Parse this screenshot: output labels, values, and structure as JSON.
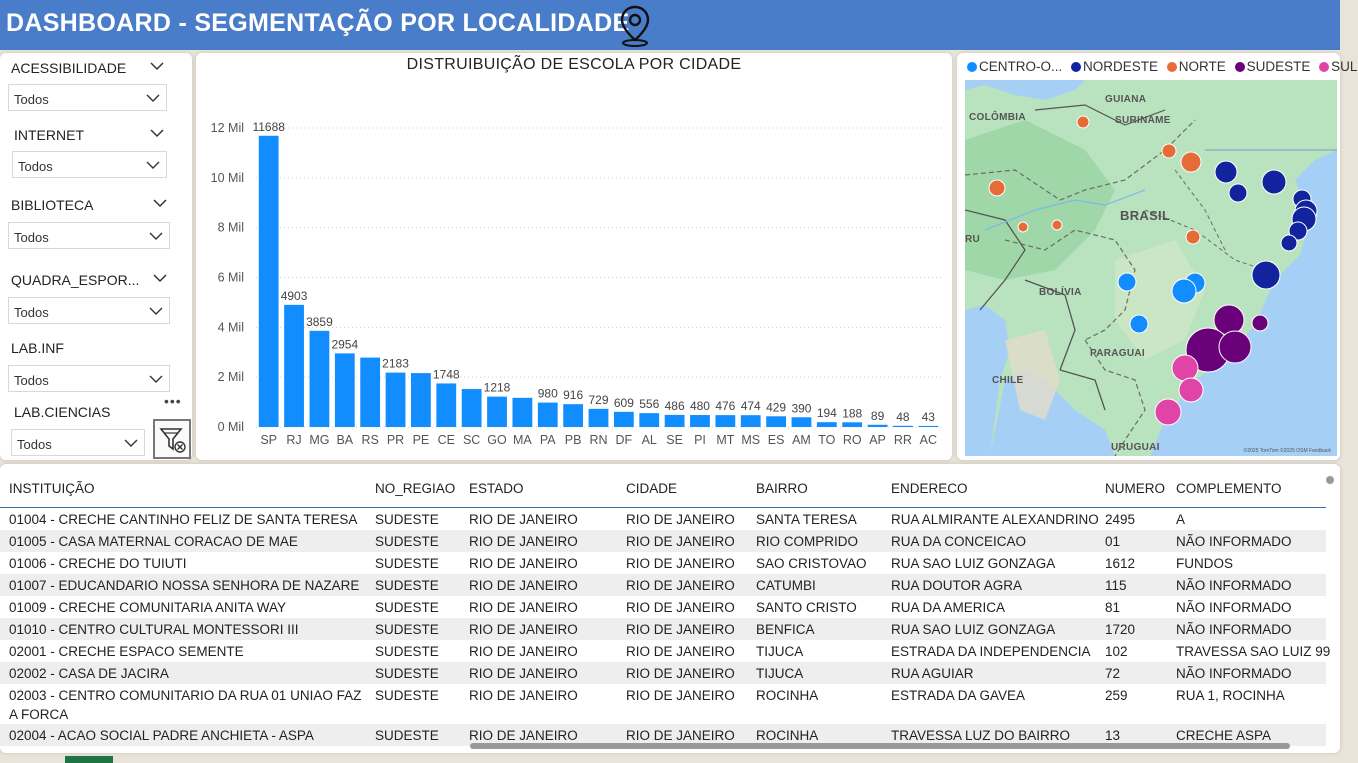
{
  "header": {
    "title": "DASHBOARD - SEGMENTAÇÃO POR LOCALIDADE",
    "icon": "map-pin-icon",
    "color": "#4a7dc9"
  },
  "slicers": [
    {
      "label": "ACESSIBILIDADE",
      "value": "Todos"
    },
    {
      "label": "INTERNET",
      "value": "Todos"
    },
    {
      "label": "BIBLIOTECA",
      "value": "Todos"
    },
    {
      "label": "QUADRA_ESPOR...",
      "value": "Todos"
    },
    {
      "label": "LAB.INF",
      "value": "Todos"
    },
    {
      "label": "LAB.CIENCIAS",
      "value": "Todos"
    }
  ],
  "chart_data": {
    "type": "bar",
    "title": "DISTRUIBUIÇÃO DE ESCOLA POR CIDADE",
    "categories": [
      "SP",
      "RJ",
      "MG",
      "BA",
      "RS",
      "PR",
      "PE",
      "CE",
      "SC",
      "GO",
      "MA",
      "PA",
      "PB",
      "RN",
      "DF",
      "AL",
      "SE",
      "PI",
      "MT",
      "MS",
      "ES",
      "AM",
      "TO",
      "RO",
      "AP",
      "RR",
      "AC"
    ],
    "values": [
      11688,
      4903,
      3859,
      2954,
      2786,
      2183,
      2163,
      1748,
      1523,
      1218,
      1171,
      980,
      916,
      729,
      609,
      556,
      486,
      480,
      476,
      474,
      429,
      390,
      194,
      188,
      89,
      48,
      43
    ],
    "data_labels": [
      "11688",
      "4903",
      "3859",
      "2954",
      "",
      "2183",
      "",
      "1748",
      "",
      "1218",
      "",
      "980",
      "916",
      "729",
      "609",
      "556",
      "486",
      "480",
      "476",
      "474",
      "429",
      "390",
      "194",
      "188",
      "89",
      "48",
      "43"
    ],
    "ylim": [
      0,
      12000
    ],
    "yticks": [
      0,
      2000,
      4000,
      6000,
      8000,
      10000,
      12000
    ],
    "ytick_labels": [
      "0 Mil",
      "2 Mil",
      "4 Mil",
      "6 Mil",
      "8 Mil",
      "10 Mil",
      "12 Mil"
    ],
    "color": "#118dff",
    "grid": true
  },
  "map": {
    "legend": [
      {
        "label": "CENTRO-O...",
        "color": "#118dff"
      },
      {
        "label": "NORDESTE",
        "color": "#12239e"
      },
      {
        "label": "NORTE",
        "color": "#e66c37"
      },
      {
        "label": "SUDESTE",
        "color": "#6b007b"
      },
      {
        "label": "SUL",
        "color": "#e044a7"
      }
    ],
    "labels": [
      "GUIANA",
      "SURINAME",
      "COLÔMBIA",
      "BRASIL",
      "RU",
      "BOLÍVIA",
      "PARAGUAI",
      "CHILE",
      "URUGUAI"
    ],
    "attribution": "©2025 TomTom ©2025 OSM Feedback"
  },
  "table": {
    "columns": [
      "INSTITUIÇÃO",
      "NO_REGIAO",
      "ESTADO",
      "CIDADE",
      "BAIRRO",
      "ENDERECO",
      "NUMERO",
      "COMPLEMENTO"
    ],
    "rows": [
      [
        "01004 - CRECHE CANTINHO FELIZ DE SANTA TERESA",
        "SUDESTE",
        "RIO DE JANEIRO",
        "RIO DE JANEIRO",
        "SANTA TERESA",
        "RUA ALMIRANTE ALEXANDRINO",
        "2495",
        "A"
      ],
      [
        "01005 - CASA MATERNAL CORACAO DE MAE",
        "SUDESTE",
        "RIO DE JANEIRO",
        "RIO DE JANEIRO",
        "RIO COMPRIDO",
        "RUA DA CONCEICAO",
        "01",
        "NÃO INFORMADO"
      ],
      [
        "01006 - CRECHE DO TUIUTI",
        "SUDESTE",
        "RIO DE JANEIRO",
        "RIO DE JANEIRO",
        "SAO CRISTOVAO",
        "RUA SAO LUIZ GONZAGA",
        "1612",
        "FUNDOS"
      ],
      [
        "01007 - EDUCANDARIO NOSSA SENHORA DE NAZARE",
        "SUDESTE",
        "RIO DE JANEIRO",
        "RIO DE JANEIRO",
        "CATUMBI",
        "RUA DOUTOR AGRA",
        "115",
        "NÃO INFORMADO"
      ],
      [
        "01009 - CRECHE COMUNITARIA ANITA WAY",
        "SUDESTE",
        "RIO DE JANEIRO",
        "RIO DE JANEIRO",
        "SANTO CRISTO",
        "RUA DA AMERICA",
        "81",
        "NÃO INFORMADO"
      ],
      [
        "01010 - CENTRO CULTURAL MONTESSORI III",
        "SUDESTE",
        "RIO DE JANEIRO",
        "RIO DE JANEIRO",
        "BENFICA",
        "RUA SAO LUIZ GONZAGA",
        "1720",
        "NÃO INFORMADO"
      ],
      [
        "02001 - CRECHE ESPACO SEMENTE",
        "SUDESTE",
        "RIO DE JANEIRO",
        "RIO DE JANEIRO",
        "TIJUCA",
        "ESTRADA DA INDEPENDENCIA",
        "102",
        "TRAVESSA SAO LUIZ 99"
      ],
      [
        "02002 - CASA DE JACIRA",
        "SUDESTE",
        "RIO DE JANEIRO",
        "RIO DE JANEIRO",
        "TIJUCA",
        "RUA AGUIAR",
        "72",
        "NÃO INFORMADO"
      ],
      [
        "02003 - CENTRO COMUNITARIO DA RUA 01 UNIAO FAZ",
        "SUDESTE",
        "RIO DE JANEIRO",
        "RIO DE JANEIRO",
        "ROCINHA",
        "ESTRADA DA GAVEA",
        "259",
        "RUA 1, ROCINHA"
      ],
      [
        "02004 - ACAO SOCIAL PADRE ANCHIETA - ASPA",
        "SUDESTE",
        "RIO DE JANEIRO",
        "RIO DE JANEIRO",
        "ROCINHA",
        "TRAVESSA LUZ DO BAIRRO",
        "13",
        "CRECHE ASPA"
      ]
    ],
    "wrap_line": "A FORCA"
  }
}
